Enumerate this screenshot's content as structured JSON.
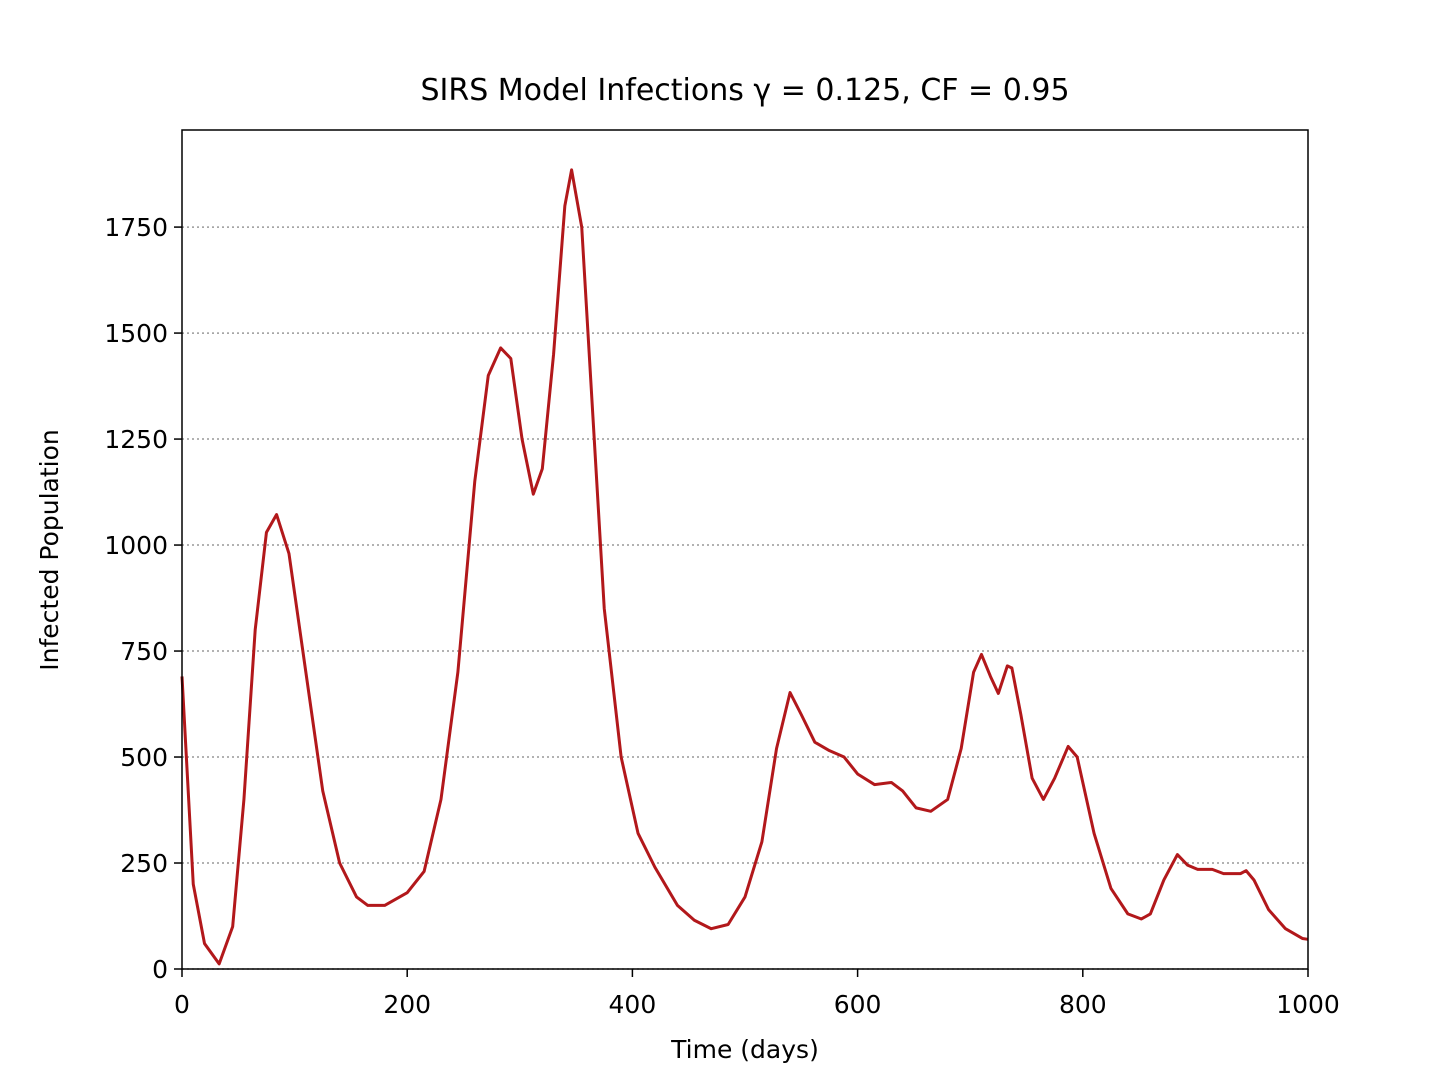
{
  "chart_data": {
    "type": "line",
    "title": "SIRS Model Infections γ = 0.125, CF = 0.95",
    "xlabel": "Time (days)",
    "ylabel": "Infected Population",
    "x": [
      0,
      10,
      20,
      33,
      45,
      55,
      65,
      75,
      84,
      95,
      110,
      125,
      140,
      155,
      165,
      180,
      200,
      215,
      230,
      245,
      260,
      272,
      283,
      292,
      302,
      312,
      320,
      330,
      340,
      346,
      355,
      365,
      375,
      390,
      405,
      420,
      440,
      455,
      470,
      485,
      500,
      515,
      528,
      540,
      550,
      562,
      575,
      588,
      600,
      615,
      630,
      640,
      652,
      665,
      680,
      692,
      703,
      710,
      718,
      725,
      733,
      737,
      745,
      755,
      765,
      775,
      787,
      795,
      810,
      825,
      840,
      852,
      860,
      872,
      884,
      893,
      902,
      915,
      925,
      940,
      945,
      952,
      965,
      980,
      995,
      1000
    ],
    "series": [
      {
        "name": "Infected",
        "color": "#b2181b",
        "values": [
          690,
          200,
          60,
          12,
          100,
          400,
          800,
          1030,
          1072,
          980,
          700,
          420,
          250,
          170,
          150,
          150,
          180,
          230,
          400,
          700,
          1150,
          1400,
          1465,
          1440,
          1250,
          1120,
          1180,
          1450,
          1800,
          1885,
          1750,
          1300,
          850,
          500,
          320,
          240,
          150,
          115,
          95,
          105,
          170,
          300,
          520,
          652,
          600,
          535,
          515,
          500,
          460,
          435,
          440,
          420,
          380,
          372,
          400,
          520,
          700,
          742,
          690,
          650,
          715,
          710,
          600,
          450,
          400,
          450,
          525,
          500,
          320,
          190,
          130,
          118,
          130,
          210,
          270,
          245,
          235,
          235,
          225,
          225,
          232,
          210,
          140,
          95,
          72,
          70
        ]
      }
    ],
    "xlim": [
      0,
      1000
    ],
    "ylim": [
      0,
      1979
    ],
    "xticks": [
      0,
      200,
      400,
      600,
      800,
      1000
    ],
    "yticks": [
      0,
      250,
      500,
      750,
      1000,
      1250,
      1500,
      1750
    ],
    "grid": true
  }
}
